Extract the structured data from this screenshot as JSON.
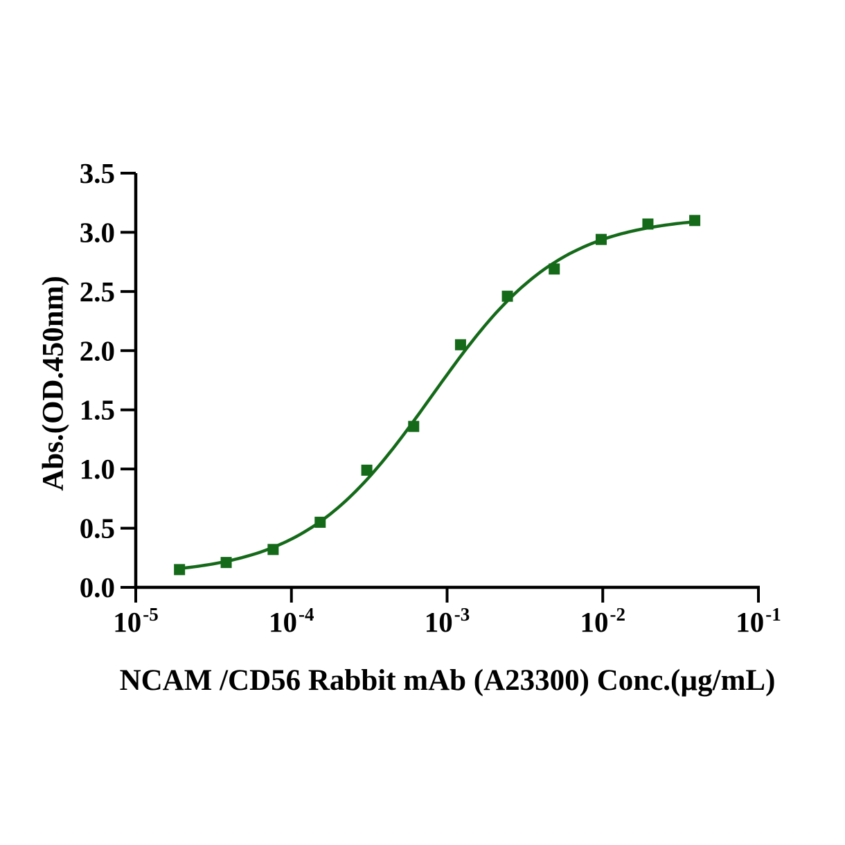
{
  "chart_data": {
    "type": "scatter",
    "title": "",
    "xlabel": "NCAM /CD56 Rabbit mAb (A23300) Conc.(µg/mL)",
    "ylabel": "Abs.(OD.450nm)",
    "x_scale": "log10",
    "xlim_exponents": [
      -5,
      -1
    ],
    "ylim": [
      0,
      3.5
    ],
    "grid": false,
    "legend": "none",
    "background_color": "#ffffff",
    "axis_color": "#000000",
    "x_ticks": [
      {
        "base": "10",
        "exp": "-5"
      },
      {
        "base": "10",
        "exp": "-4"
      },
      {
        "base": "10",
        "exp": "-3"
      },
      {
        "base": "10",
        "exp": "-2"
      },
      {
        "base": "10",
        "exp": "-1"
      }
    ],
    "y_ticks": [
      "0.0",
      "0.5",
      "1.0",
      "1.5",
      "2.0",
      "2.5",
      "3.0",
      "3.5"
    ],
    "series": [
      {
        "name": "NCAM /CD56 Rabbit mAb (A23300)",
        "color": "#146A19",
        "marker": "square",
        "points": [
          {
            "x": 1.91e-05,
            "y": 0.15
          },
          {
            "x": 3.81e-05,
            "y": 0.21
          },
          {
            "x": 7.63e-05,
            "y": 0.32
          },
          {
            "x": 0.000153,
            "y": 0.55
          },
          {
            "x": 0.000305,
            "y": 0.99
          },
          {
            "x": 0.00061,
            "y": 1.36
          },
          {
            "x": 0.00122,
            "y": 2.05
          },
          {
            "x": 0.00244,
            "y": 2.46
          },
          {
            "x": 0.00488,
            "y": 2.69
          },
          {
            "x": 0.00977,
            "y": 2.94
          },
          {
            "x": 0.0195,
            "y": 3.07
          },
          {
            "x": 0.039,
            "y": 3.1
          }
        ],
        "fit_curve": {
          "model": "4PL",
          "bottom": 0.1,
          "top": 3.14,
          "ec50": 0.0008,
          "hill": 1.05
        }
      }
    ]
  }
}
